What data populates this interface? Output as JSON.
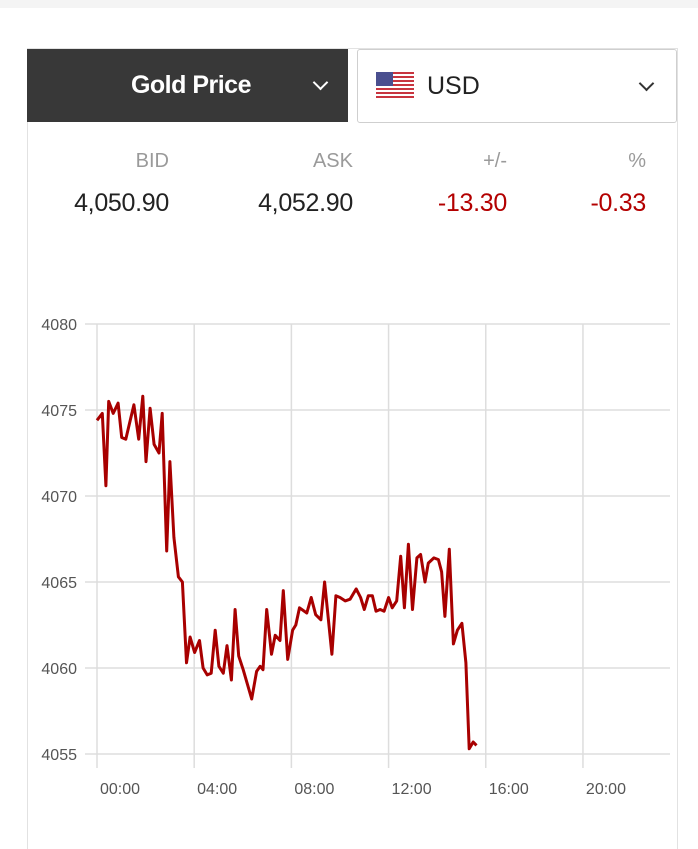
{
  "selector": {
    "metal": "Gold Price",
    "currency": "USD",
    "currency_flag": "us-flag-icon"
  },
  "quote": {
    "headers": {
      "bid": "BID",
      "ask": "ASK",
      "change": "+/-",
      "percent": "%"
    },
    "values": {
      "bid": "4,050.90",
      "ask": "4,052.90",
      "change": "-13.30",
      "percent": "-0.33"
    }
  },
  "colors": {
    "header_bg": "#383838",
    "negative": "#b30000",
    "line": "#a80000",
    "grid": "#dddddd"
  },
  "chart_data": {
    "type": "line",
    "title": "",
    "xlabel": "",
    "ylabel": "",
    "xlim": [
      "00:00",
      "23:30"
    ],
    "ylim": [
      4055,
      4080
    ],
    "grid": true,
    "x_ticks": [
      "00:00",
      "04:00",
      "08:00",
      "12:00",
      "16:00",
      "20:00"
    ],
    "y_ticks": [
      4055,
      4060,
      4065,
      4070,
      4075,
      4080
    ],
    "series": [
      {
        "color": "#a80000",
        "x": [
          "00:00",
          "00:13",
          "00:22",
          "00:29",
          "00:40",
          "00:52",
          "01:01",
          "01:11",
          "01:31",
          "01:43",
          "01:53",
          "02:01",
          "02:11",
          "02:21",
          "02:33",
          "02:41",
          "02:52",
          "03:00",
          "03:10",
          "03:21",
          "03:31",
          "03:41",
          "03:50",
          "04:01",
          "04:13",
          "04:22",
          "04:32",
          "04:42",
          "04:52",
          "05:01",
          "05:12",
          "05:21",
          "05:32",
          "05:41",
          "05:50",
          "06:01",
          "06:22",
          "06:34",
          "06:43",
          "06:50",
          "06:59",
          "07:11",
          "07:20",
          "07:32",
          "07:40",
          "07:51",
          "08:03",
          "08:11",
          "08:20",
          "08:38",
          "08:49",
          "09:00",
          "09:13",
          "09:22",
          "09:40",
          "09:50",
          "10:00",
          "10:13",
          "10:25",
          "10:40",
          "10:51",
          "11:00",
          "11:10",
          "11:20",
          "11:29",
          "11:39",
          "11:49",
          "12:00",
          "12:09",
          "12:20",
          "12:30",
          "12:39",
          "12:49",
          "12:59",
          "13:10",
          "13:19",
          "13:30",
          "13:38",
          "13:52",
          "14:03",
          "14:11",
          "14:19",
          "14:30",
          "14:40",
          "14:50",
          "15:01",
          "15:11",
          "15:19",
          "15:29",
          "15:37"
        ],
        "y": [
          4074.4,
          4074.8,
          4070.6,
          4075.5,
          4074.8,
          4075.4,
          4073.4,
          4073.3,
          4075.3,
          4073.3,
          4075.8,
          4072.0,
          4075.1,
          4073.0,
          4072.5,
          4074.8,
          4066.8,
          4072.0,
          4067.6,
          4065.3,
          4065.0,
          4060.3,
          4061.8,
          4060.9,
          4061.6,
          4060.0,
          4059.6,
          4059.7,
          4062.2,
          4060.1,
          4059.7,
          4061.3,
          4059.3,
          4063.4,
          4060.7,
          4059.9,
          4058.2,
          4059.8,
          4060.1,
          4059.9,
          4063.4,
          4060.8,
          4061.9,
          4061.6,
          4064.5,
          4060.5,
          4062.2,
          4062.5,
          4063.5,
          4063.2,
          4064.1,
          4063.1,
          4062.8,
          4065.0,
          4060.8,
          4064.2,
          4064.1,
          4063.9,
          4064.0,
          4064.6,
          4064.1,
          4063.4,
          4064.2,
          4064.2,
          4063.3,
          4063.4,
          4063.3,
          4064.1,
          4063.5,
          4063.9,
          4066.5,
          4063.5,
          4067.2,
          4063.4,
          4066.4,
          4066.6,
          4065.0,
          4066.1,
          4066.4,
          4066.3,
          4065.6,
          4063.0,
          4066.9,
          4061.4,
          4062.2,
          4062.6,
          4060.3,
          4055.3,
          4055.7,
          4055.5
        ]
      }
    ]
  }
}
